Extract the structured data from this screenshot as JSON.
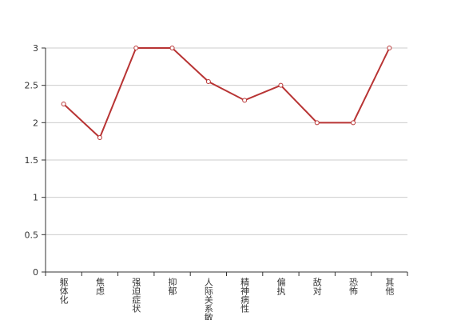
{
  "chart_data": {
    "type": "line",
    "categories": [
      "躯体化",
      "焦虑",
      "强迫症状",
      "抑郁",
      "人际关系敏感",
      "精神病性",
      "偏执",
      "敌对",
      "恐怖",
      "其他"
    ],
    "series": [
      {
        "color": "#b83434",
        "values": [
          2.25,
          1.8,
          3,
          3,
          2.55,
          2.3,
          2.5,
          2,
          2,
          3
        ]
      }
    ],
    "ylim": [
      0,
      3
    ],
    "yticks": [
      0,
      0.5,
      1,
      1.5,
      2,
      2.5,
      3
    ],
    "grid": true
  }
}
